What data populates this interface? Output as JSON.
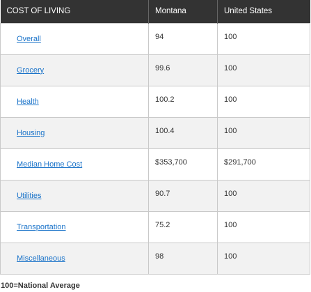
{
  "table": {
    "headers": [
      "COST OF LIVING",
      "Montana",
      "United States"
    ],
    "rows": [
      {
        "label": "Overall",
        "montana": "94",
        "us": "100"
      },
      {
        "label": "Grocery",
        "montana": "99.6",
        "us": "100"
      },
      {
        "label": "Health",
        "montana": "100.2",
        "us": "100"
      },
      {
        "label": "Housing",
        "montana": "100.4",
        "us": "100"
      },
      {
        "label": "Median Home Cost",
        "montana": "$353,700",
        "us": "$291,700"
      },
      {
        "label": "Utilities",
        "montana": "90.7",
        "us": "100"
      },
      {
        "label": "Transportation",
        "montana": "75.2",
        "us": "100"
      },
      {
        "label": "Miscellaneous",
        "montana": "98",
        "us": "100"
      }
    ]
  },
  "footnote": "100=National Average",
  "colors": {
    "header_bg": "#333333",
    "header_text": "#ffffff",
    "link": "#1a73c9",
    "row_alt": "#f2f2f2",
    "border": "#c9c9c9"
  }
}
